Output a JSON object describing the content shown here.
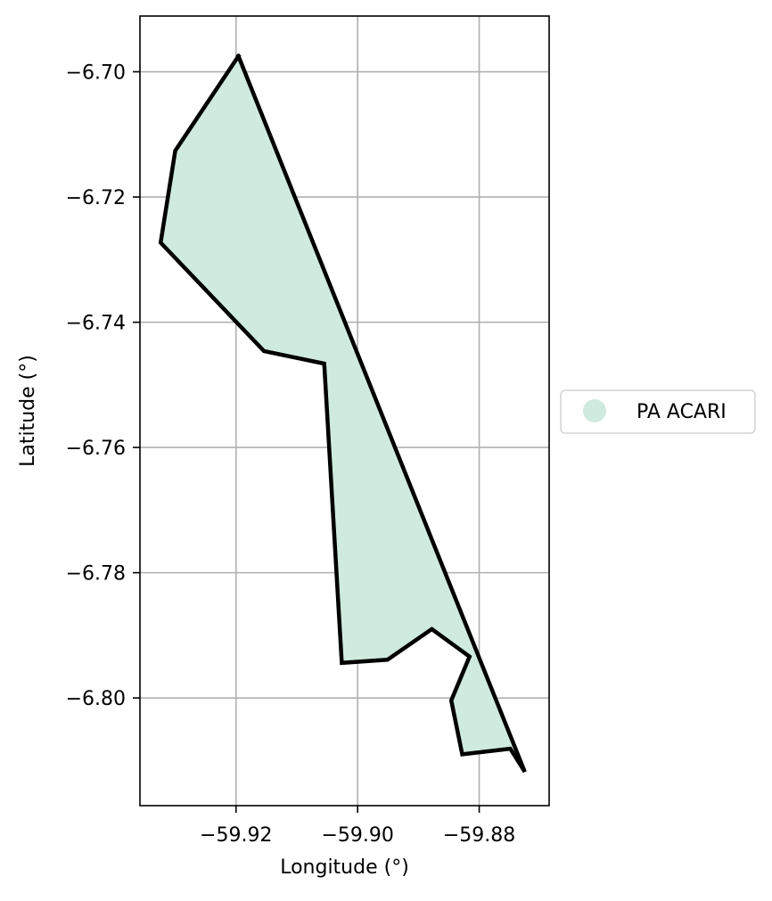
{
  "chart_data": {
    "type": "map",
    "xlabel": "Longitude (°)",
    "ylabel": "Latitude (°)",
    "xlim": [
      -59.9358,
      -59.8685
    ],
    "ylim": [
      -6.8172,
      -6.6911
    ],
    "grid": true,
    "x_ticks": [
      -59.92,
      -59.9,
      -59.88
    ],
    "x_tick_labels": [
      "−59.92",
      "−59.90",
      "−59.88"
    ],
    "y_ticks": [
      -6.7,
      -6.72,
      -6.74,
      -6.76,
      -6.78,
      -6.8
    ],
    "y_tick_labels": [
      "−6.70",
      "−6.72",
      "−6.74",
      "−6.76",
      "−6.78",
      "−6.80"
    ],
    "legend_position": "right",
    "legend": [
      {
        "label": "PA ACARI",
        "color": "#cfeade"
      }
    ],
    "polygon": {
      "name": "PA ACARI",
      "fill": "#cfeade",
      "stroke": "#000000",
      "coordinates": [
        [
          -59.9196,
          -6.6975
        ],
        [
          -59.8725,
          -6.8118
        ],
        [
          -59.8749,
          -6.8081
        ],
        [
          -59.8828,
          -6.809
        ],
        [
          -59.8846,
          -6.8004
        ],
        [
          -59.8816,
          -6.7934
        ],
        [
          -59.8878,
          -6.789
        ],
        [
          -59.8951,
          -6.7939
        ],
        [
          -59.9026,
          -6.7944
        ],
        [
          -59.9055,
          -6.7466
        ],
        [
          -59.9154,
          -6.7446
        ],
        [
          -59.9324,
          -6.7273
        ],
        [
          -59.93,
          -6.7126
        ],
        [
          -59.9196,
          -6.6975
        ]
      ]
    }
  }
}
